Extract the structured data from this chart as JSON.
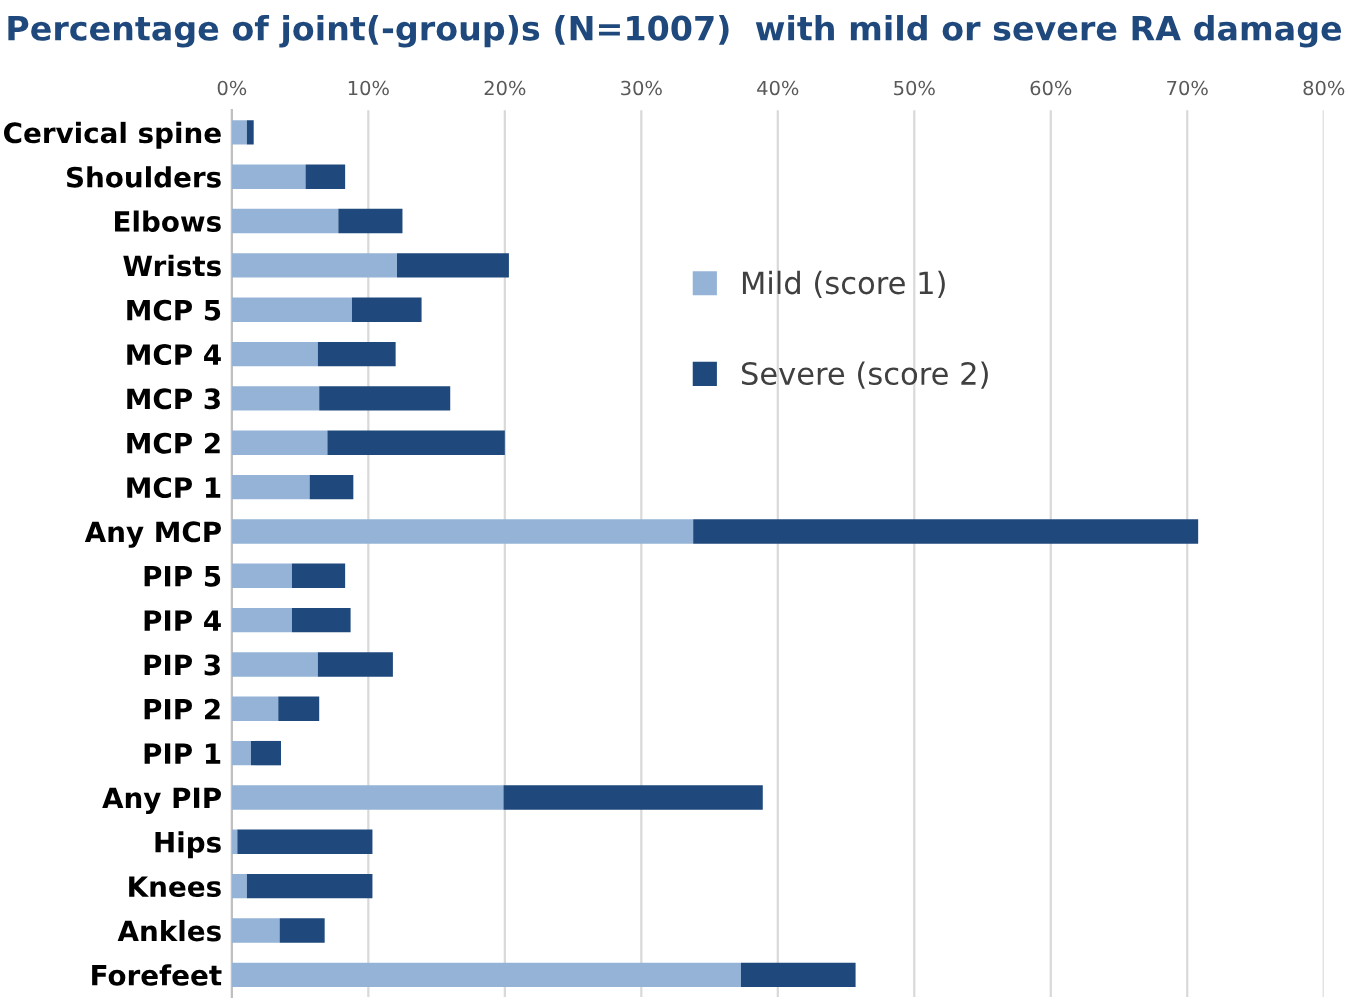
{
  "chart_data": {
    "type": "bar",
    "orientation": "horizontal",
    "stacked": true,
    "title": "Percentage of joint(-group)s (N=1007)  with mild or severe RA damage",
    "categories": [
      "Cervical spine",
      "Shoulders",
      "Elbows",
      "Wrists",
      "MCP 5",
      "MCP 4",
      "MCP 3",
      "MCP 2",
      "MCP 1",
      "Any MCP",
      "PIP 5",
      "PIP 4",
      "PIP 3",
      "PIP 2",
      "PIP 1",
      "Any PIP",
      "Hips",
      "Knees",
      "Ankles",
      "Forefeet"
    ],
    "series": [
      {
        "name": "Mild (score 1)",
        "color": "#95b3d7",
        "values": [
          1.1,
          5.4,
          7.8,
          12.1,
          8.8,
          6.3,
          6.4,
          7.0,
          5.7,
          33.8,
          4.4,
          4.4,
          6.3,
          3.4,
          1.4,
          19.9,
          0.4,
          1.1,
          3.5,
          37.3
        ]
      },
      {
        "name": "Severe (score 2)",
        "color": "#1f497d",
        "values": [
          0.5,
          2.9,
          4.7,
          8.2,
          5.1,
          5.7,
          9.6,
          13.0,
          3.2,
          37.0,
          3.9,
          4.3,
          5.5,
          3.0,
          2.2,
          19.0,
          9.9,
          9.2,
          3.3,
          8.4
        ]
      }
    ],
    "xlim": [
      0,
      80
    ],
    "xticks": [
      {
        "value": 0,
        "label": "0%"
      },
      {
        "value": 10,
        "label": "10%"
      },
      {
        "value": 20,
        "label": "20%"
      },
      {
        "value": 30,
        "label": "30%"
      },
      {
        "value": 40,
        "label": "40%"
      },
      {
        "value": 50,
        "label": "50%"
      },
      {
        "value": 60,
        "label": "60%"
      },
      {
        "value": 70,
        "label": "70%"
      },
      {
        "value": 80,
        "label": "80%"
      }
    ],
    "grid": "x",
    "legend": "top right"
  }
}
